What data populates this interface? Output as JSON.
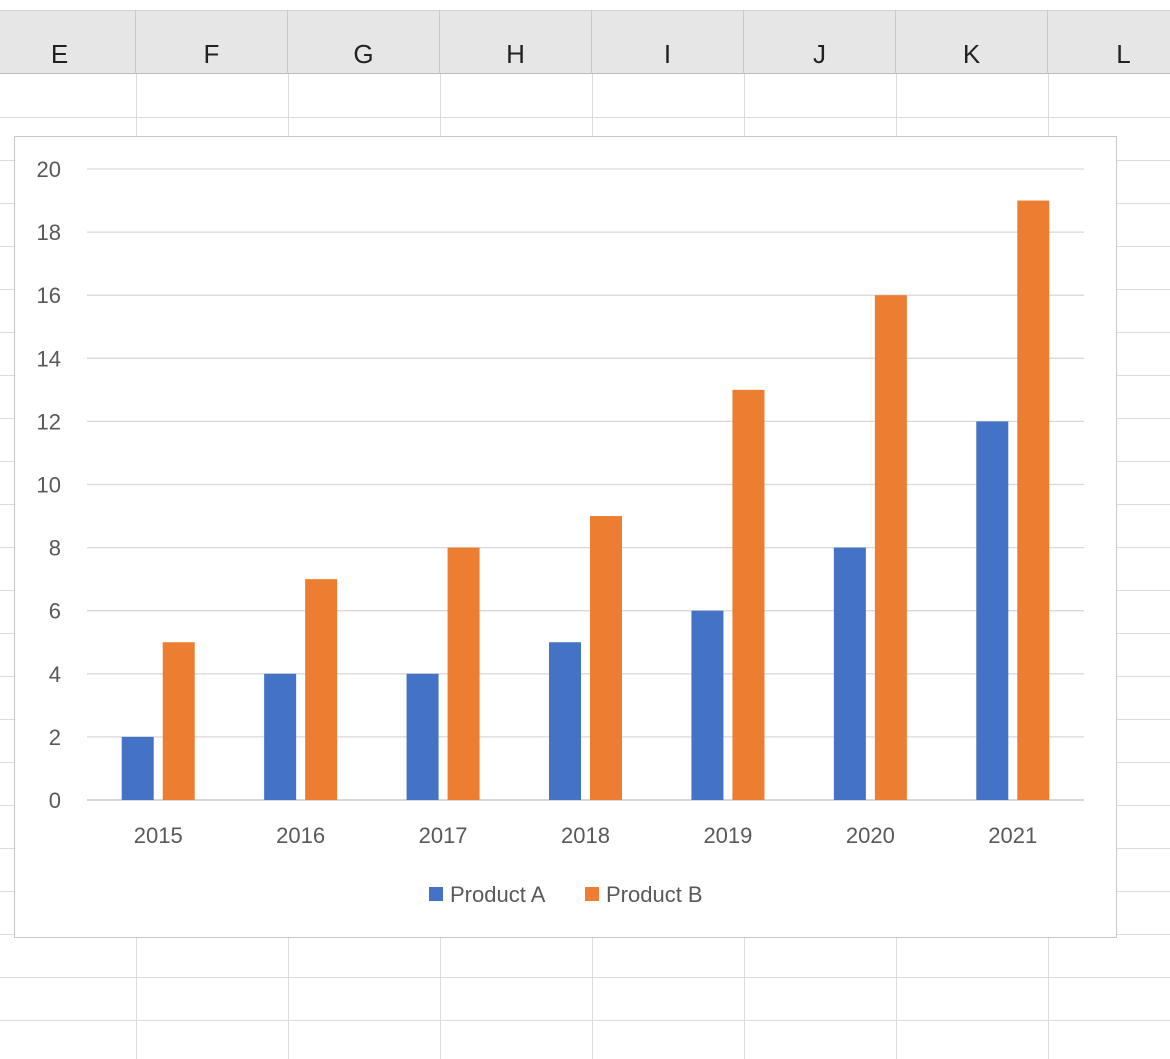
{
  "spreadsheet": {
    "columns": [
      "E",
      "F",
      "G",
      "H",
      "I",
      "J",
      "K",
      "L"
    ]
  },
  "chart_data": {
    "type": "bar",
    "title": "",
    "xlabel": "",
    "ylabel": "",
    "categories": [
      "2015",
      "2016",
      "2017",
      "2018",
      "2019",
      "2020",
      "2021"
    ],
    "series": [
      {
        "name": "Product A",
        "color": "#4472C4",
        "values": [
          2,
          4,
          4,
          5,
          6,
          8,
          12
        ]
      },
      {
        "name": "Product B",
        "color": "#ED7D31",
        "values": [
          5,
          7,
          8,
          9,
          13,
          16,
          19
        ]
      }
    ],
    "ylim": [
      0,
      20
    ],
    "yticks": [
      "0",
      "2",
      "4",
      "6",
      "8",
      "10",
      "12",
      "14",
      "16",
      "18",
      "20"
    ],
    "grid": true,
    "legend_position": "bottom"
  }
}
